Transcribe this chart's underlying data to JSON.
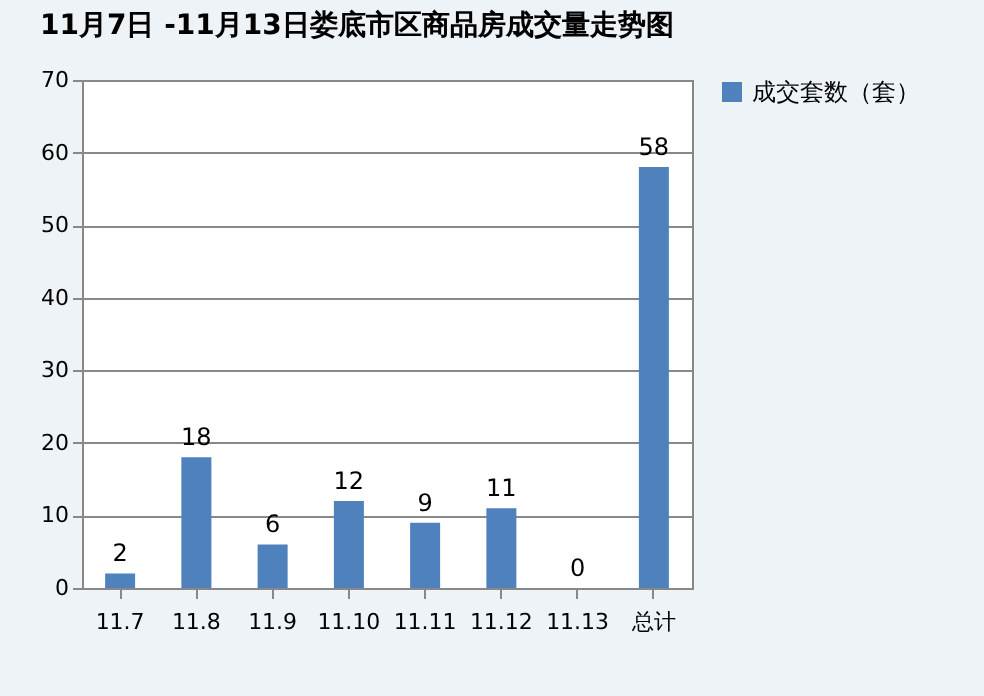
{
  "chart_data": {
    "type": "bar",
    "title": "11月7日 -11月13日娄底市区商品房成交量走势图",
    "categories": [
      "11.7",
      "11.8",
      "11.9",
      "11.10",
      "11.11",
      "11.12",
      "11.13",
      "总计"
    ],
    "series": [
      {
        "name": "成交套数（套）",
        "color": "#4f81bd",
        "values": [
          2,
          18,
          6,
          12,
          9,
          11,
          0,
          58
        ]
      }
    ],
    "ylim": [
      0,
      70
    ],
    "yticks": [
      0,
      10,
      20,
      30,
      40,
      50,
      60,
      70
    ],
    "grid": "y",
    "legend": "right",
    "data_labels": true
  }
}
